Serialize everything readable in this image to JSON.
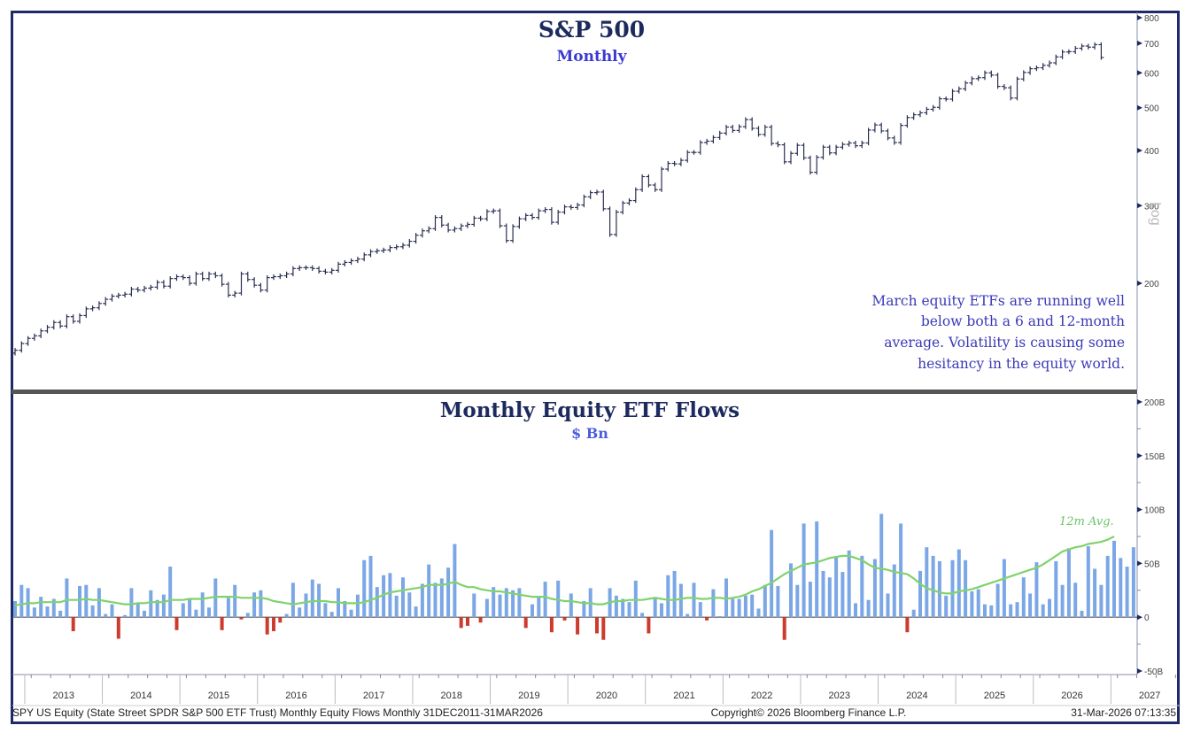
{
  "chart_data": [
    {
      "type": "ohlc",
      "title": "S&P 500",
      "subtitle": "Monthly",
      "yscale": "log",
      "yticks": [
        200,
        300,
        400,
        500,
        600,
        700,
        800
      ],
      "ylim": [
        120,
        820
      ],
      "y_axis_side": "right",
      "y_axis_label": "Log",
      "start_month": "2012-11",
      "colors": {
        "bar": "#2b2f52",
        "title": "#1d2a5e",
        "subtitle": "#3a3ad0"
      },
      "annotation": [
        "March equity ETFs are running well",
        "below both a 6 and 12-month",
        "average. Volatility is causing some",
        "hesitancy in the equity world."
      ],
      "close": [
        141,
        146,
        150,
        152,
        156,
        159,
        163,
        160,
        168,
        164,
        169,
        175,
        176,
        180,
        184,
        187,
        188,
        189,
        194,
        193,
        195,
        196,
        201,
        197,
        205,
        207,
        206,
        200,
        210,
        205,
        210,
        208,
        199,
        188,
        190,
        210,
        204,
        198,
        193,
        206,
        207,
        208,
        210,
        216,
        217,
        217,
        216,
        213,
        212,
        214,
        221,
        223,
        225,
        227,
        232,
        236,
        237,
        238,
        241,
        242,
        244,
        249,
        257,
        263,
        266,
        282,
        271,
        264,
        266,
        270,
        272,
        281,
        280,
        291,
        292,
        270,
        250,
        269,
        280,
        285,
        282,
        292,
        294,
        275,
        290,
        298,
        297,
        301,
        314,
        321,
        322,
        295,
        258,
        290,
        304,
        308,
        326,
        349,
        334,
        326,
        363,
        374,
        373,
        380,
        396,
        396,
        417,
        420,
        428,
        438,
        452,
        444,
        453,
        470,
        449,
        435,
        452,
        415,
        412,
        377,
        394,
        411,
        385,
        357,
        386,
        407,
        395,
        407,
        413,
        416,
        410,
        416,
        445,
        457,
        443,
        427,
        417,
        456,
        475,
        482,
        487,
        496,
        501,
        524,
        523,
        545,
        552,
        569,
        582,
        585,
        600,
        593,
        559,
        555,
        526,
        581,
        601,
        613,
        616,
        624,
        632,
        652,
        669,
        670,
        682,
        690,
        686,
        695,
        650
      ]
    },
    {
      "type": "bar",
      "title": "Monthly Equity ETF Flows",
      "subtitle": "$ Bn",
      "ylim": [
        -50,
        200
      ],
      "yticks": [
        -50,
        0,
        50,
        100,
        150,
        200
      ],
      "ytick_labels": [
        "-50B",
        "0",
        "50B",
        "100B",
        "150B",
        "200B"
      ],
      "y_axis_side": "right",
      "start_month": "2012-11",
      "x_tick_labels": [
        "2013",
        "2014",
        "2015",
        "2016",
        "2017",
        "2018",
        "2019",
        "2020",
        "2021",
        "2022",
        "2023",
        "2024",
        "2025",
        "2026",
        "2027"
      ],
      "series": [
        {
          "name": "Monthly Equity ETF Flows",
          "colors": {
            "positive": "#7ba7e6",
            "negative": "#cc3b2e"
          },
          "values": [
            15,
            30,
            27,
            9,
            19,
            10,
            17,
            6,
            36,
            -13,
            29,
            30,
            11,
            27,
            3,
            12,
            -20,
            2,
            27,
            13,
            6,
            25,
            16,
            21,
            47,
            -12,
            13,
            17,
            7,
            23,
            9,
            36,
            -12,
            18,
            30,
            -2,
            4,
            23,
            25,
            -16,
            -13,
            -5,
            3,
            32,
            9,
            22,
            35,
            31,
            13,
            5,
            27,
            15,
            7,
            21,
            53,
            57,
            28,
            39,
            41,
            20,
            37,
            23,
            10,
            31,
            49,
            32,
            36,
            46,
            68,
            -10,
            -8,
            22,
            -5,
            17,
            28,
            21,
            27,
            25,
            27,
            -10,
            12,
            19,
            33,
            -14,
            34,
            -3,
            22,
            -16,
            15,
            27,
            -15,
            -21,
            27,
            20,
            17,
            14,
            34,
            4,
            -15,
            17,
            13,
            39,
            43,
            31,
            3,
            32,
            14,
            -3,
            26,
            1,
            36,
            17,
            17,
            20,
            21,
            8,
            30,
            81,
            29,
            -21,
            50,
            30,
            87,
            33,
            89,
            43,
            37,
            56,
            42,
            62,
            13,
            57,
            16,
            54,
            96,
            22,
            49,
            87,
            -14,
            7,
            43,
            65,
            57,
            52,
            20,
            53,
            63,
            53,
            24,
            26,
            12,
            11,
            31,
            54,
            12,
            14,
            37,
            22,
            51,
            12,
            17,
            52,
            30,
            64,
            32,
            6,
            66,
            45,
            30,
            57,
            71,
            55,
            47,
            65
          ],
          "avg_values_note": "12-month moving average (green line)"
        },
        {
          "name": "12m Avg.",
          "color": "#7fd36b",
          "values": [
            11,
            12,
            13,
            13,
            14,
            14,
            14,
            14,
            16,
            16,
            16,
            17,
            16,
            16,
            15,
            14,
            13,
            12,
            12,
            13,
            13,
            14,
            14,
            14,
            16,
            16,
            16,
            17,
            17,
            17,
            18,
            19,
            19,
            19,
            19,
            18,
            18,
            18,
            18,
            17,
            15,
            14,
            13,
            12,
            13,
            14,
            15,
            15,
            15,
            14,
            14,
            13,
            13,
            13,
            14,
            16,
            18,
            21,
            23,
            24,
            25,
            26,
            27,
            28,
            30,
            30,
            30,
            31,
            33,
            30,
            28,
            28,
            26,
            25,
            24,
            24,
            23,
            22,
            21,
            20,
            19,
            19,
            19,
            17,
            16,
            15,
            15,
            14,
            13,
            13,
            12,
            12,
            14,
            15,
            15,
            16,
            16,
            16,
            17,
            18,
            17,
            16,
            16,
            17,
            18,
            18,
            17,
            17,
            18,
            18,
            17,
            18,
            19,
            21,
            24,
            26,
            29,
            32,
            36,
            40,
            43,
            46,
            49,
            50,
            51,
            53,
            55,
            56,
            57,
            57,
            55,
            53,
            49,
            46,
            45,
            44,
            42,
            41,
            40,
            36,
            31,
            27,
            25,
            23,
            22,
            22,
            24,
            25,
            26,
            28,
            30,
            32,
            34,
            36,
            38,
            40,
            42,
            44,
            46,
            49,
            53,
            57,
            61,
            63,
            65,
            66,
            68,
            69,
            70,
            72,
            75
          ]
        }
      ]
    }
  ],
  "labels": {
    "avg_line_label": "12m Avg.",
    "footer_left": "SPY US Equity (State Street SPDR S&P 500 ETF Trust) Monthly Equity Flows Monthly 31DEC2011-31MAR2026",
    "footer_center": "Copyright© 2026 Bloomberg Finance L.P.",
    "footer_right": "31-Mar-2026 07:13:35"
  }
}
